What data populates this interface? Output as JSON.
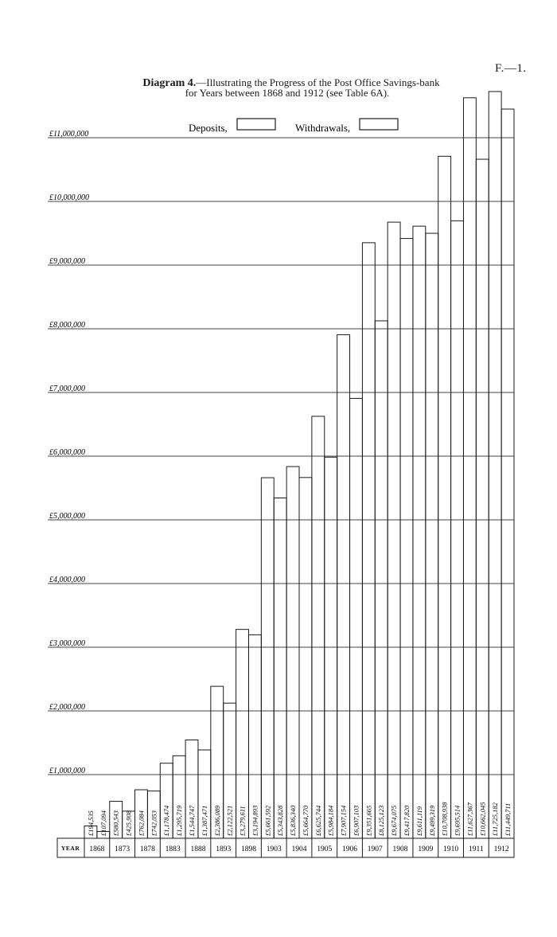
{
  "page_id": "F.—1.",
  "title_bold": "Diagram 4.",
  "title_rest": "—Illustrating the Progress of the Post Office Savings-bank",
  "subtitle": "for Years between 1868 and 1912 (see Table 6A).",
  "legend": {
    "deposits": "Deposits,",
    "withdrawals": "Withdrawals,"
  },
  "chart_data": {
    "type": "bar",
    "title": "Diagram 4.—Illustrating the Progress of the Post Office Savings-bank for Years between 1868 and 1912 (see Table 6A).",
    "x_header": "YEAR",
    "categories": [
      "1868",
      "1873",
      "1878",
      "1883",
      "1888",
      "1893",
      "1898",
      "1903",
      "1904",
      "1905",
      "1906",
      "1907",
      "1908",
      "1909",
      "1910",
      "1911",
      "1912"
    ],
    "ylim": [
      0,
      12000000
    ],
    "y_ticks": [
      1000000,
      2000000,
      3000000,
      4000000,
      5000000,
      6000000,
      7000000,
      8000000,
      9000000,
      10000000,
      11000000
    ],
    "y_tick_labels": [
      "£1,000,000",
      "£2,000,000",
      "£3,000,000",
      "£4,000,000",
      "£5,000,000",
      "£6,000,000",
      "£7,000,000",
      "£8,000,000",
      "£9,000,000",
      "£10,000,000",
      "£11,000,000"
    ],
    "grid": true,
    "legend_position": "top",
    "series": [
      {
        "name": "Deposits",
        "values": [
          194535,
          580543,
          762084,
          1178474,
          1544747,
          2386089,
          3279611,
          5661592,
          5836340,
          6625744,
          7907154,
          9351665,
          9674075,
          9611119,
          10708938,
          11627367,
          11725182
        ],
        "labels": [
          "£194,535",
          "£580,543",
          "£762,084",
          "£1,178,474",
          "£1,544,747",
          "£2,386,089",
          "£3,279,611",
          "£5,661,592",
          "£5,836,340",
          "£6,625,744",
          "£7,907,154",
          "£9,351,665",
          "£9,674,075",
          "£9,611,119",
          "£10,708,938",
          "£11,627,367",
          "£11,725,182"
        ]
      },
      {
        "name": "Withdrawals",
        "values": [
          107094,
          425908,
          742053,
          1295719,
          1387471,
          2122521,
          3194893,
          5343828,
          5664770,
          5984184,
          6907103,
          8125123,
          9417820,
          9499319,
          9695514,
          10662045,
          11449711
        ],
        "labels": [
          "£107,094",
          "£425,908",
          "£742,053",
          "£1,295,719",
          "£1,387,471",
          "£2,122,521",
          "£3,194,893",
          "£5,343,828",
          "£5,664,770",
          "£5,984,184",
          "£6,907,103",
          "£8,125,123",
          "£9,417,820",
          "£9,499,319",
          "£9,695,514",
          "£10,662,045",
          "£11,449,711"
        ]
      }
    ]
  }
}
